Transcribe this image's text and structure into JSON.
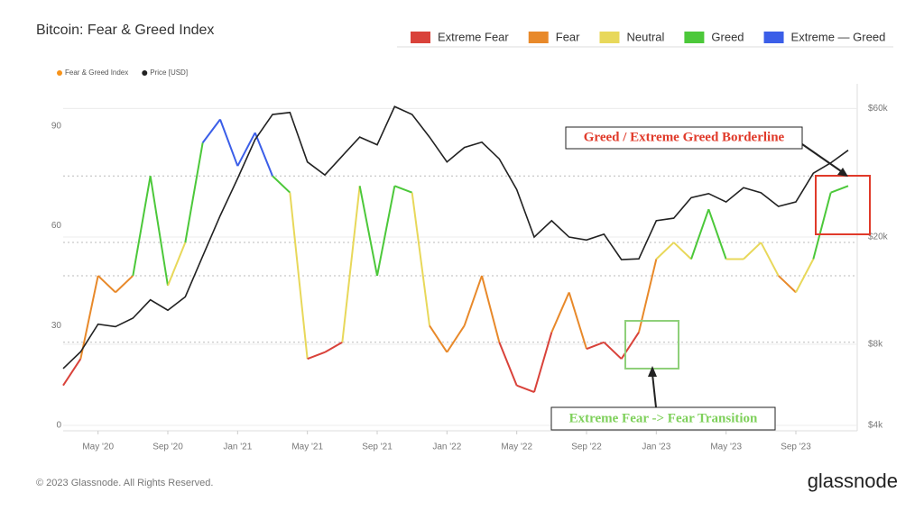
{
  "chart_data": {
    "type": "line",
    "title": "Bitcoin: Fear & Greed Index",
    "x": [
      "2020-03",
      "2020-04",
      "2020-05",
      "2020-06",
      "2020-07",
      "2020-08",
      "2020-09",
      "2020-10",
      "2020-11",
      "2020-12",
      "2021-01",
      "2021-02",
      "2021-03",
      "2021-04",
      "2021-05",
      "2021-06",
      "2021-07",
      "2021-08",
      "2021-09",
      "2021-10",
      "2021-11",
      "2021-12",
      "2022-01",
      "2022-02",
      "2022-03",
      "2022-04",
      "2022-05",
      "2022-06",
      "2022-07",
      "2022-08",
      "2022-09",
      "2022-10",
      "2022-11",
      "2022-12",
      "2023-01",
      "2023-02",
      "2023-03",
      "2023-04",
      "2023-05",
      "2023-06",
      "2023-07",
      "2023-08",
      "2023-09",
      "2023-10",
      "2023-11",
      "2023-12"
    ],
    "xlim": [
      "2020-03",
      "2023-12"
    ],
    "xticks": [
      {
        "value": "2020-05",
        "label": "May '20"
      },
      {
        "value": "2020-09",
        "label": "Sep '20"
      },
      {
        "value": "2021-01",
        "label": "Jan '21"
      },
      {
        "value": "2021-05",
        "label": "May '21"
      },
      {
        "value": "2021-09",
        "label": "Sep '21"
      },
      {
        "value": "2022-01",
        "label": "Jan '22"
      },
      {
        "value": "2022-05",
        "label": "May '22"
      },
      {
        "value": "2022-09",
        "label": "Sep '22"
      },
      {
        "value": "2023-01",
        "label": "Jan '23"
      },
      {
        "value": "2023-05",
        "label": "May '23"
      },
      {
        "value": "2023-09",
        "label": "Sep '23"
      }
    ],
    "ylim": [
      0,
      100
    ],
    "yticks": [
      0,
      30,
      60,
      90
    ],
    "y2lim": [
      4000,
      68600
    ],
    "y2scale": "log",
    "y2ticks": [
      {
        "value": 4000,
        "label": "$4k"
      },
      {
        "value": 8000,
        "label": "$8k"
      },
      {
        "value": 20000,
        "label": "$20k"
      },
      {
        "value": 60000,
        "label": "$60k"
      }
    ],
    "grid": true,
    "zones": [
      {
        "name": "Extreme Fear",
        "color": "#d9423a",
        "from": 0
      },
      {
        "name": "Fear",
        "color": "#e8892a",
        "from": 25
      },
      {
        "name": "Neutral",
        "color": "#e8d85a",
        "from": 45
      },
      {
        "name": "Greed",
        "color": "#4cc83a",
        "from": 55
      },
      {
        "name": "Extreme — Greed",
        "color": "#3b5ee8",
        "from": 75
      }
    ],
    "series": [
      {
        "name": "Fear & Greed Index",
        "color": "#f7931a",
        "values": [
          12,
          20,
          45,
          40,
          45,
          75,
          42,
          55,
          85,
          92,
          78,
          88,
          75,
          70,
          20,
          22,
          25,
          72,
          45,
          72,
          70,
          30,
          22,
          30,
          45,
          25,
          12,
          10,
          28,
          40,
          23,
          25,
          20,
          28,
          50,
          55,
          50,
          65,
          50,
          50,
          55,
          45,
          40,
          50,
          70,
          72
        ]
      },
      {
        "name": "Price [USD]",
        "color": "#222222",
        "axis": "y2",
        "values": [
          6500,
          7500,
          9500,
          9300,
          10000,
          11700,
          10700,
          12000,
          17000,
          24000,
          33000,
          46000,
          57000,
          58000,
          38000,
          34000,
          40000,
          47000,
          44000,
          61000,
          57000,
          47000,
          38000,
          43000,
          45000,
          39000,
          30000,
          20000,
          23000,
          20000,
          19500,
          20500,
          16500,
          16600,
          23000,
          23500,
          28000,
          29000,
          27000,
          30500,
          29200,
          26000,
          27000,
          34500,
          37700,
          42000
        ]
      }
    ],
    "annotations": [
      "Greed / Extreme Greed Borderline",
      "Extreme Fear -> Fear Transition"
    ],
    "footer": "© 2023 Glassnode. All Rights Reserved.",
    "brand": "glassnode"
  }
}
